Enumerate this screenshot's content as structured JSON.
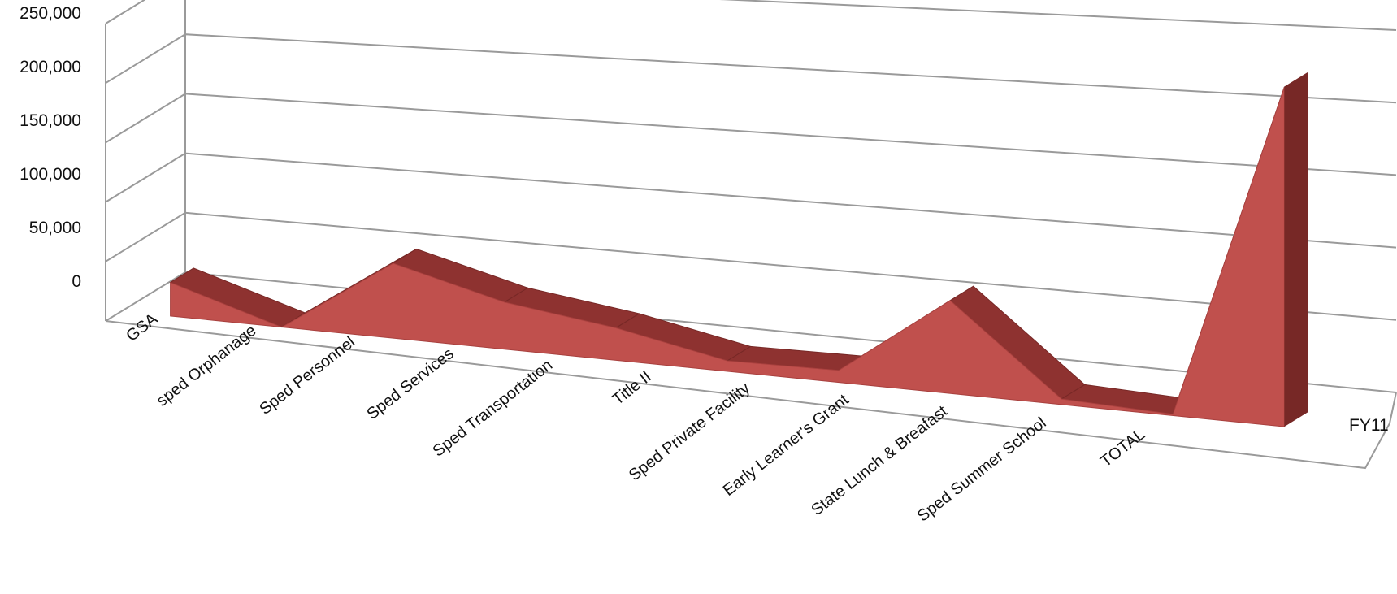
{
  "chart_data": {
    "type": "area",
    "view": "3d",
    "categories": [
      "GSA",
      "sped Orphanage",
      "Sped Personnel",
      "Sped Services",
      "Sped Transportation",
      "Title II",
      "Sped Private Facility",
      "Early Learner's Grant",
      "State Lunch & Breafast",
      "Sped Summer School",
      "TOTAL"
    ],
    "series": [
      {
        "name": "FY11",
        "values": [
          28000,
          0,
          60000,
          37000,
          25000,
          8000,
          9000,
          68000,
          4000,
          1000,
          236000
        ]
      }
    ],
    "yticks": [
      "250,000",
      "200,000",
      "150,000",
      "100,000",
      "50,000",
      "0"
    ],
    "ylim": [
      0,
      250000
    ],
    "grid": true,
    "legend": "none"
  },
  "colors": {
    "series_face": "#c0504d",
    "series_top": "#8e3230",
    "series_side": "#772826",
    "grid": "#9a9a9a"
  }
}
